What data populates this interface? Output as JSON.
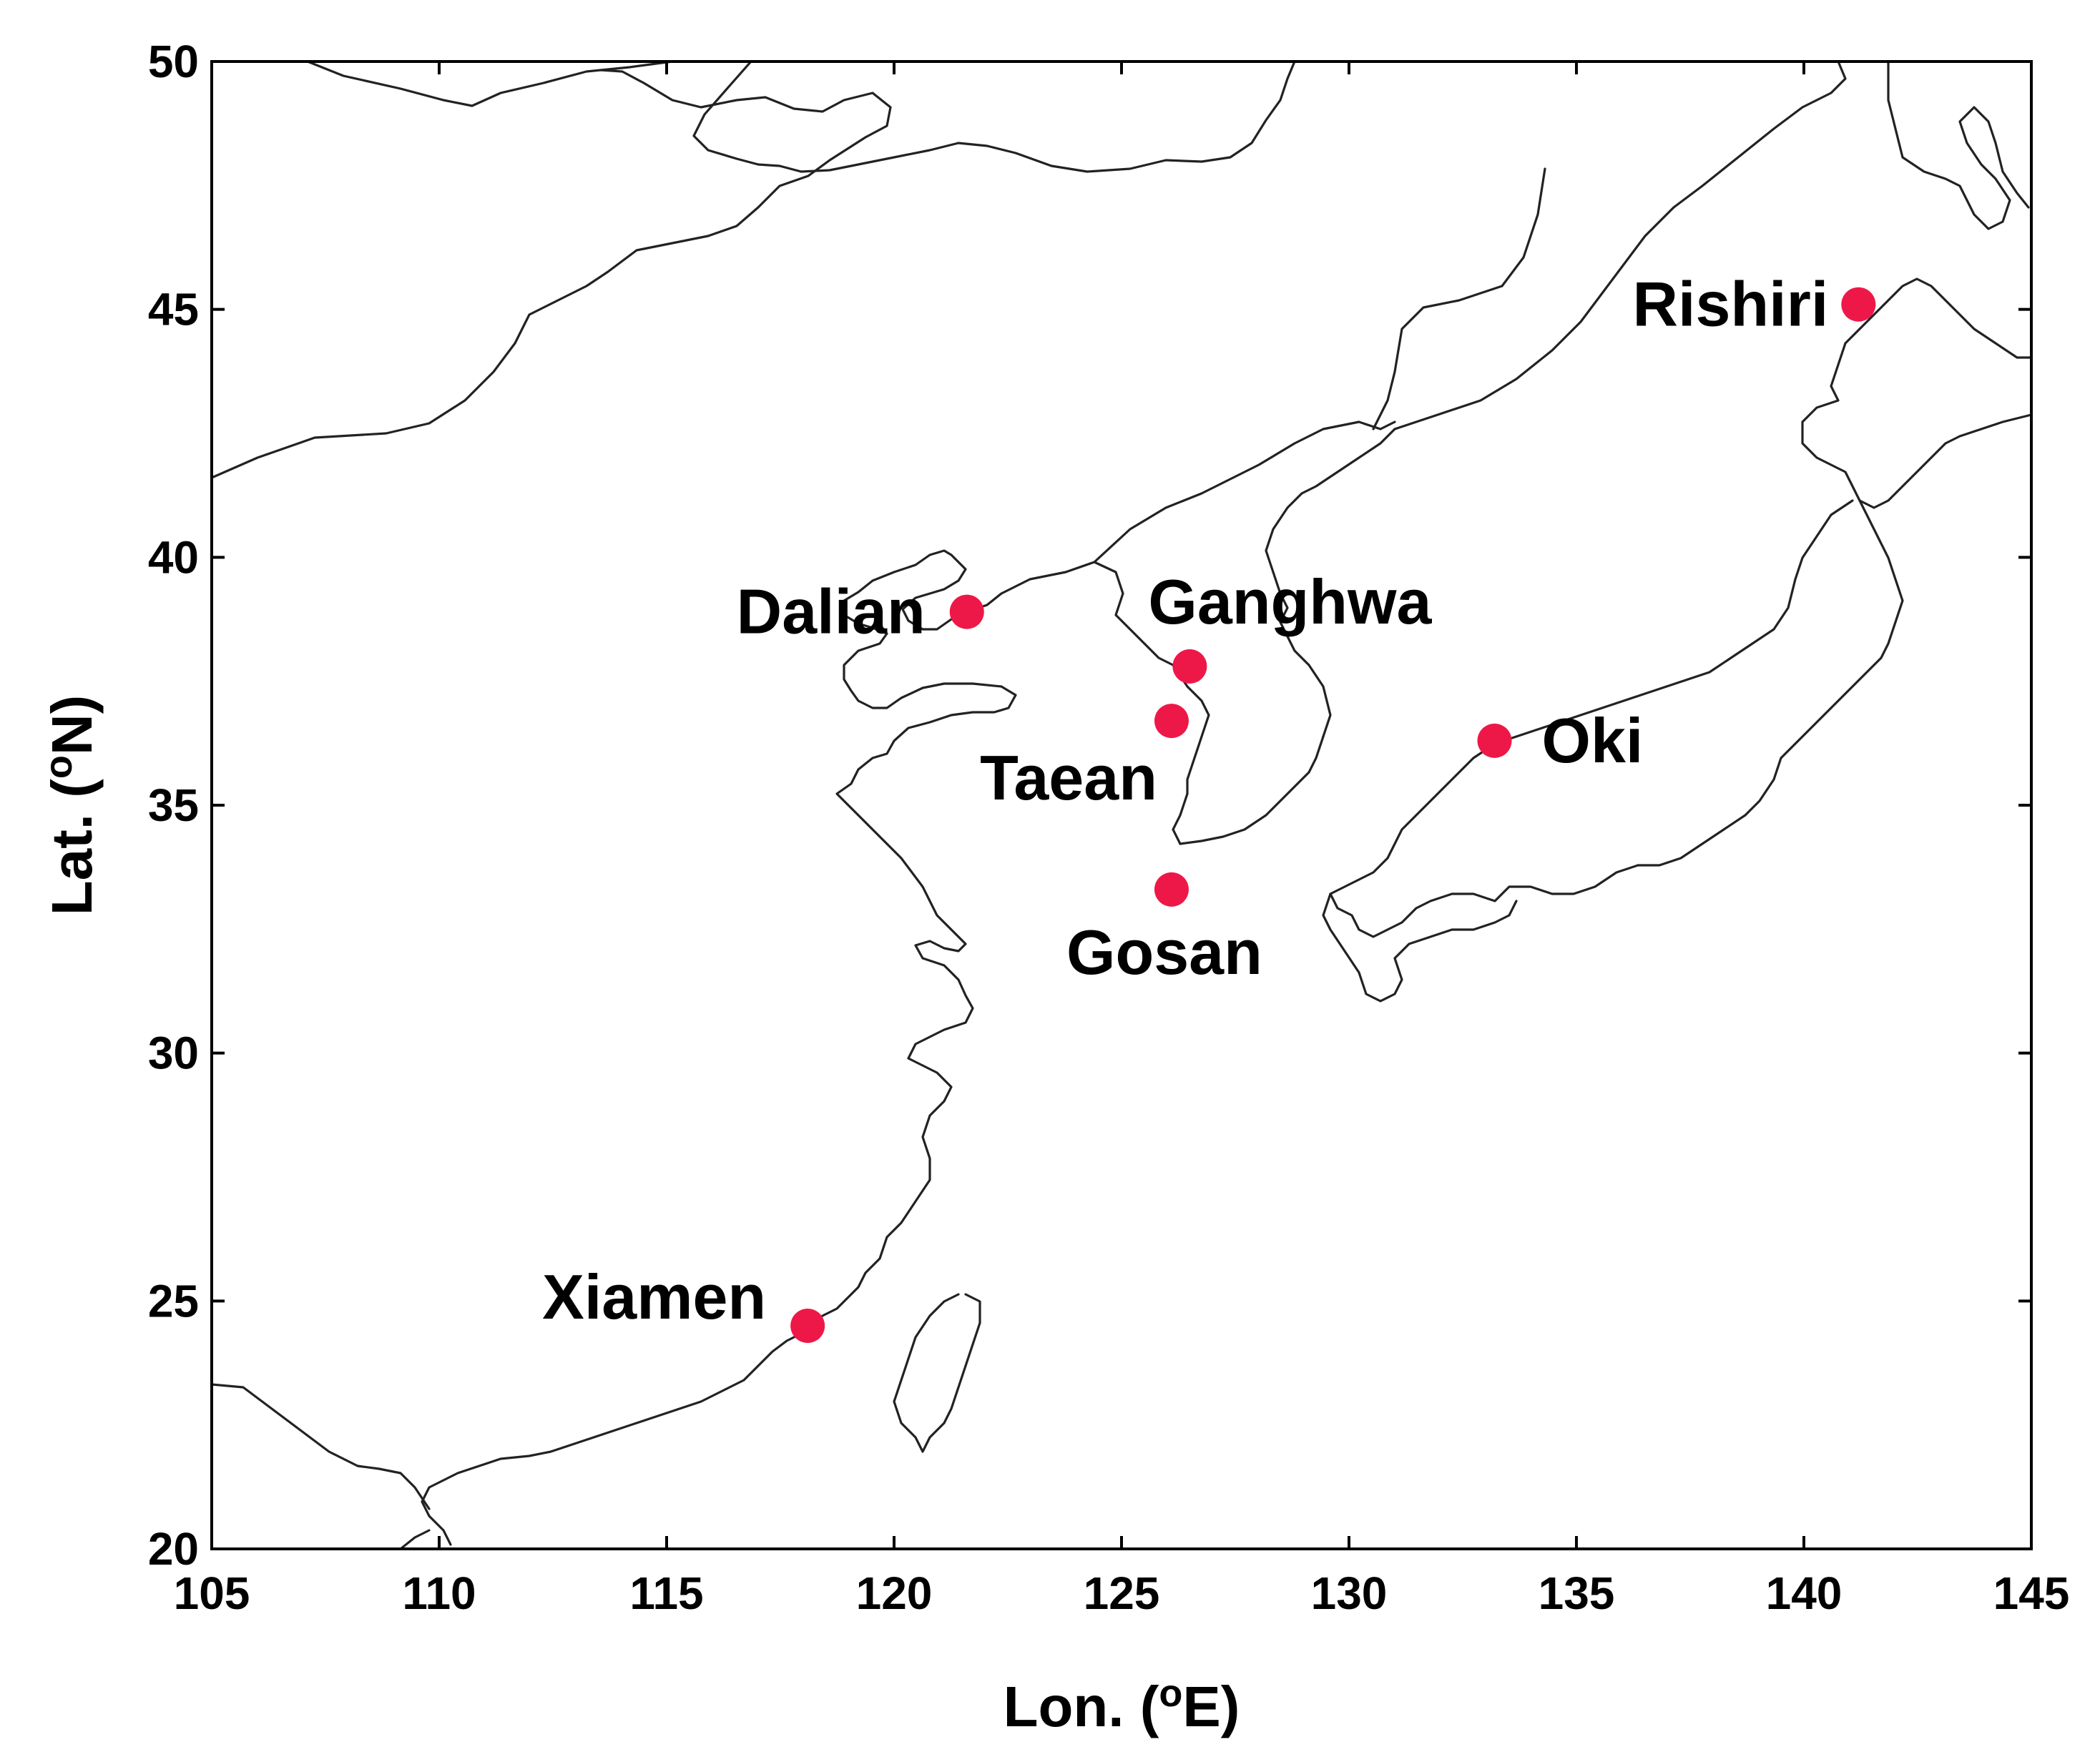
{
  "chart_data": {
    "type": "map",
    "xlabel": {
      "prefix": "Lon. (",
      "sup": "o",
      "suffix": "E)"
    },
    "ylabel": {
      "prefix": "Lat. (",
      "sup": "o",
      "suffix": "N)"
    },
    "xlim": [
      105,
      145
    ],
    "ylim": [
      20,
      50
    ],
    "xticks": [
      105,
      110,
      115,
      120,
      125,
      130,
      135,
      140,
      145
    ],
    "yticks": [
      20,
      25,
      30,
      35,
      40,
      45,
      50
    ],
    "marker_color": "#ee1848",
    "sites": [
      {
        "name": "Rishiri",
        "lon": 141.2,
        "lat": 45.1
      },
      {
        "name": "Dalian",
        "lon": 121.6,
        "lat": 38.9
      },
      {
        "name": "Ganghwa",
        "lon": 126.5,
        "lat": 37.8
      },
      {
        "name": "Taean",
        "lon": 126.1,
        "lat": 36.7
      },
      {
        "name": "Oki",
        "lon": 133.2,
        "lat": 36.3
      },
      {
        "name": "Gosan",
        "lon": 126.1,
        "lat": 33.3
      },
      {
        "name": "Xiamen",
        "lon": 118.1,
        "lat": 24.5
      }
    ]
  }
}
